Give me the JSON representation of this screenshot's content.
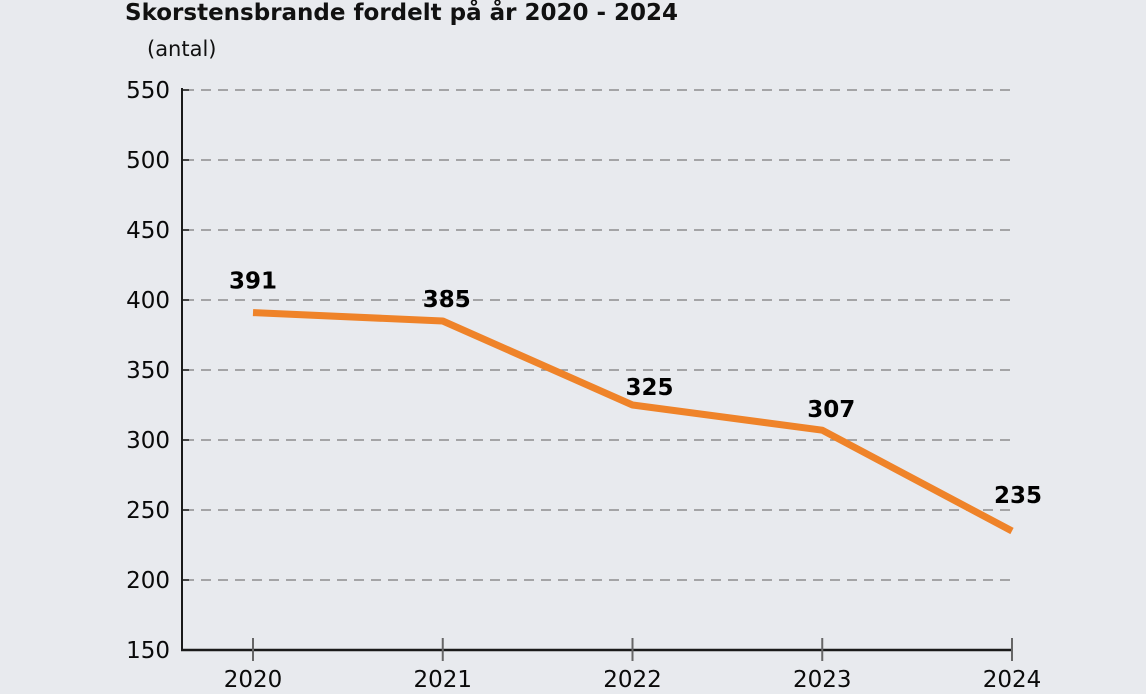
{
  "chart": {
    "title": "Skorstensbrande fordelt på år 2020 - 2024",
    "unit_label": "(antal)"
  },
  "chart_data": {
    "type": "line",
    "title": "Skorstensbrande fordelt på år 2020 - 2024",
    "ylabel": "(antal)",
    "xlabel": "",
    "categories": [
      "2020",
      "2021",
      "2022",
      "2023",
      "2024"
    ],
    "values": [
      391,
      385,
      325,
      307,
      235
    ],
    "data_labels": [
      "391",
      "385",
      "325",
      "307",
      "235"
    ],
    "y_ticks": [
      150,
      200,
      250,
      300,
      350,
      400,
      450,
      500,
      550
    ],
    "ylim": [
      150,
      550
    ],
    "grid": "horizontal-dashed",
    "legend": "none",
    "colors": {
      "line": "#EF8329",
      "background": "#E8EAEE",
      "grid": "#8D8D8D",
      "axis": "#1A1A1A",
      "tick": "#666666",
      "text": "#0A0A0A"
    }
  }
}
